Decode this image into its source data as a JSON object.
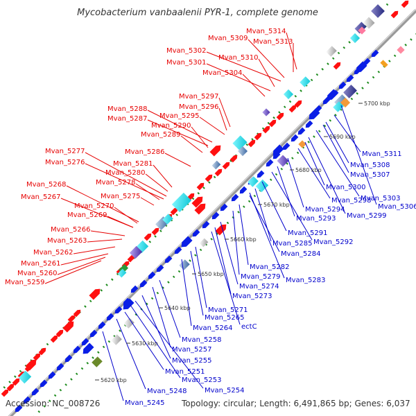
{
  "title": "Mycobacterium vanbaalenii PYR-1, complete genome",
  "footer": {
    "accession": "Accession: NC_008726",
    "summary": "Topology: circular; Length: 6,491,865 bp; Genes: 6,037"
  },
  "colors": {
    "forward_label": "#e60000",
    "reverse_label": "#0000cc",
    "forward_gene": "#ff0000",
    "reverse_gene": "#0a1ee6",
    "backbone": "#8f8f8f",
    "gc_dots": "#1a8a1a",
    "orf_cyan": "#25e6f0",
    "orf_purple": "#7a5ad0",
    "orf_gray": "#bdbdbd",
    "orf_orange": "#f39a3a"
  },
  "ticks": [
    "5620 kbp",
    "5630 kbp",
    "5640 kbp",
    "5650 kbp",
    "5660 kbp",
    "5670 kbp",
    "5680 kbp",
    "5690 kbp",
    "5700 kbp"
  ],
  "labels_forward": [
    "Mvan_5314",
    "Mvan_5313",
    "Mvan_5309",
    "Mvan_5302",
    "Mvan_5310",
    "Mvan_5301",
    "Mvan_5304",
    "Mvan_5297",
    "Mvan_5296",
    "Mvan_5288",
    "Mvan_5287",
    "Mvan_5295",
    "Mvan_5290",
    "Mvan_5289",
    "Mvan_5286",
    "Mvan_5277",
    "Mvan_5276",
    "Mvan_5281",
    "Mvan_5280",
    "Mvan_5278",
    "Mvan_5268",
    "Mvan_5275",
    "Mvan_5267",
    "Mvan_5270",
    "Mvan_5269",
    "Mvan_5266",
    "Mvan_5263",
    "Mvan_5262",
    "Mvan_5261",
    "Mvan_5260",
    "Mvan_5259"
  ],
  "labels_reverse": [
    "Mvan_5311",
    "Mvan_5308",
    "Mvan_5307",
    "Mvan_5300",
    "Mvan_5303",
    "Mvan_5306",
    "Mvan_5298",
    "Mvan_5294",
    "Mvan_5299",
    "Mvan_5293",
    "Mvan_5291",
    "Mvan_5285",
    "Mvan_5292",
    "Mvan_5284",
    "Mvan_5282",
    "Mvan_5279",
    "Mvan_5283",
    "Mvan_5274",
    "Mvan_5273",
    "Mvan_5271",
    "Mvan_5265",
    "ectC",
    "Mvan_5264",
    "Mvan_5258",
    "Mvan_5257",
    "Mvan_5255",
    "Mvan_5251",
    "Mvan_5253",
    "Mvan_5248",
    "Mvan_5254",
    "Mvan_5245"
  ]
}
